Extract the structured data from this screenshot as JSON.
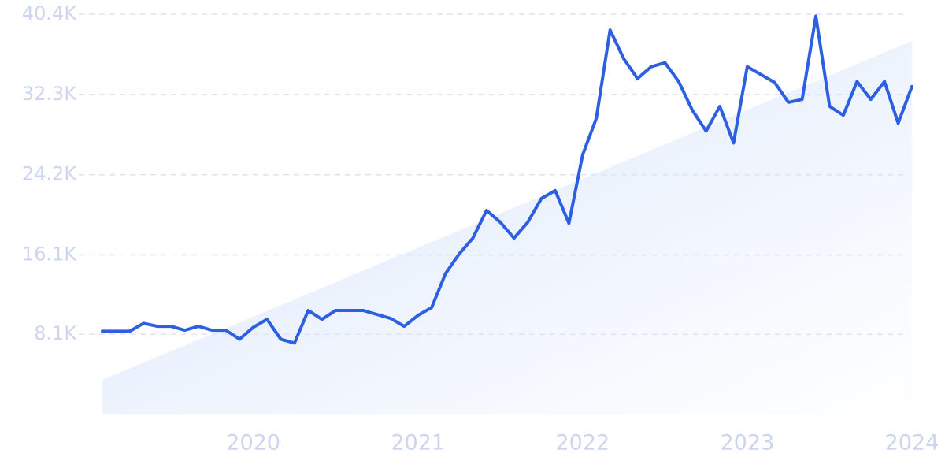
{
  "chart_data": {
    "type": "line",
    "categories": [
      null,
      null,
      null,
      null,
      null,
      null,
      null,
      null,
      null,
      null,
      null,
      "2020",
      null,
      null,
      null,
      null,
      null,
      null,
      null,
      null,
      null,
      null,
      null,
      "2021",
      null,
      null,
      null,
      null,
      null,
      null,
      null,
      null,
      null,
      null,
      null,
      "2022",
      null,
      null,
      null,
      null,
      null,
      null,
      null,
      null,
      null,
      null,
      null,
      "2023",
      null,
      null,
      null,
      null,
      null,
      null,
      null,
      null,
      null,
      null,
      null,
      "2024"
    ],
    "series": [
      {
        "color": "#2d5fe3",
        "values": [
          8400,
          8400,
          8400,
          9200,
          8900,
          8900,
          8500,
          8900,
          8500,
          8500,
          7600,
          8800,
          9600,
          7600,
          7200,
          10500,
          9600,
          10500,
          10500,
          10500,
          10100,
          9700,
          8900,
          10000,
          10800,
          14200,
          16200,
          17800,
          20600,
          19400,
          17800,
          19400,
          21800,
          22600,
          19300,
          26200,
          29900,
          38800,
          35900,
          33900,
          35100,
          35500,
          33600,
          30700,
          28600,
          31100,
          27400,
          35100,
          34300,
          33500,
          31500,
          31800,
          40200,
          31100,
          30200,
          33600,
          31800,
          33600,
          29400,
          33100
        ]
      }
    ],
    "trend_values": [
      3500,
      37700
    ],
    "trend_color": "#dde9fb",
    "ylim": [
      0,
      40400
    ],
    "yticks": [
      {
        "value": 8100,
        "label": "8.1K"
      },
      {
        "value": 16100,
        "label": "16.1K"
      },
      {
        "value": 24200,
        "label": "24.2K"
      },
      {
        "value": 32300,
        "label": "32.3K"
      },
      {
        "value": 40400,
        "label": "40.4K"
      }
    ],
    "grid": true
  }
}
